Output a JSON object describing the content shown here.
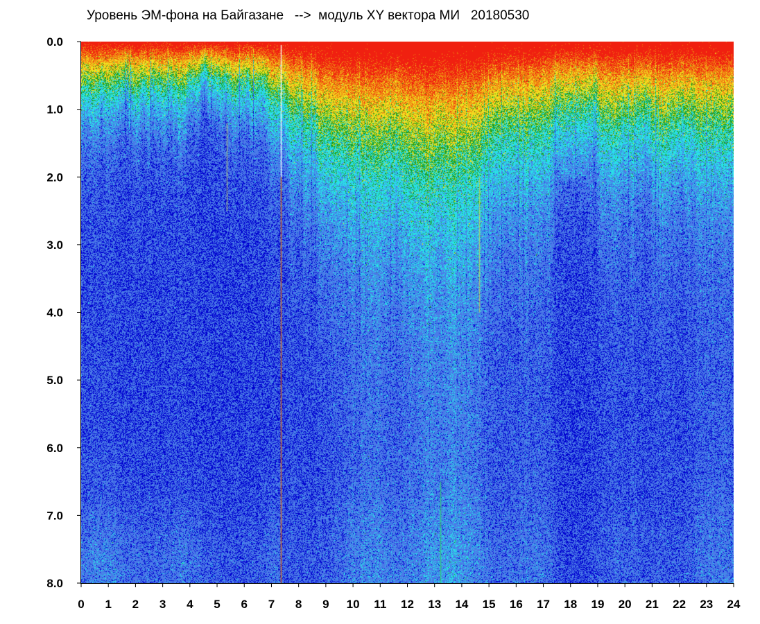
{
  "chart_data": {
    "type": "heatmap",
    "title": "Уровень ЭМ-фона на Байгазане   -->  модуль XY вектора МИ   20180530",
    "xlabel": "",
    "ylabel": "",
    "xlim": [
      0,
      24
    ],
    "ylim": [
      0,
      8
    ],
    "y_axis_inverted": true,
    "x_ticks": [
      "0",
      "1",
      "2",
      "3",
      "4",
      "5",
      "6",
      "7",
      "8",
      "9",
      "10",
      "11",
      "12",
      "13",
      "14",
      "15",
      "16",
      "17",
      "18",
      "19",
      "20",
      "21",
      "22",
      "23",
      "24"
    ],
    "y_ticks": [
      "0.0",
      "1.0",
      "2.0",
      "3.0",
      "4.0",
      "5.0",
      "6.0",
      "7.0",
      "8.0"
    ],
    "colormap": [
      "#0000d0",
      "#4a7be8",
      "#29e0e8",
      "#1fa01f",
      "#f0e020",
      "#f08010",
      "#f02010"
    ],
    "grid": false,
    "legend": "none"
  }
}
